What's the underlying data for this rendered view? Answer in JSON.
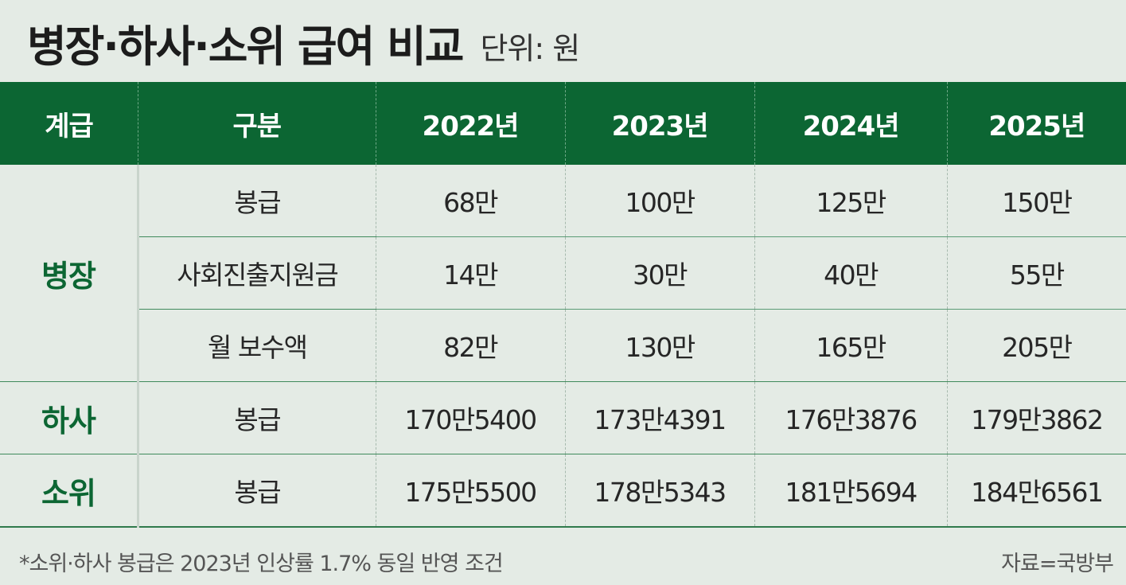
{
  "header": {
    "title": "병장·하사·소위 급여 비교",
    "unit": "단위: 원"
  },
  "table": {
    "headers": [
      "계급",
      "구분",
      "2022년",
      "2023년",
      "2024년",
      "2025년"
    ],
    "groups": [
      {
        "grade": "병장",
        "rows": [
          {
            "label": "봉급",
            "values": [
              "68만",
              "100만",
              "125만",
              "150만"
            ]
          },
          {
            "label": "사회진출지원금",
            "values": [
              "14만",
              "30만",
              "40만",
              "55만"
            ]
          },
          {
            "label": "월 보수액",
            "values": [
              "82만",
              "130만",
              "165만",
              "205만"
            ]
          }
        ]
      },
      {
        "grade": "하사",
        "rows": [
          {
            "label": "봉급",
            "values": [
              "170만5400",
              "173만4391",
              "176만3876",
              "179만3862"
            ]
          }
        ]
      },
      {
        "grade": "소위",
        "rows": [
          {
            "label": "봉급",
            "values": [
              "175만5500",
              "178만5343",
              "181만5694",
              "184만6561"
            ]
          }
        ]
      }
    ]
  },
  "chart_data": {
    "type": "table",
    "title": "병장·하사·소위 급여 비교",
    "unit": "단위: 원",
    "columns": [
      "계급",
      "구분",
      "2022년",
      "2023년",
      "2024년",
      "2025년"
    ],
    "rows": [
      [
        "병장",
        "봉급",
        "68만",
        "100만",
        "125만",
        "150만"
      ],
      [
        "병장",
        "사회진출지원금",
        "14만",
        "30만",
        "40만",
        "55만"
      ],
      [
        "병장",
        "월 보수액",
        "82만",
        "130만",
        "165만",
        "205만"
      ],
      [
        "하사",
        "봉급",
        "170만5400",
        "173만4391",
        "176만3876",
        "179만3862"
      ],
      [
        "소위",
        "봉급",
        "175만5500",
        "178만5343",
        "181만5694",
        "184만6561"
      ]
    ]
  },
  "footer": {
    "note": "*소위·하사 봉급은 2023년 인상률 1.7% 동일 반영 조건",
    "source": "자료=국방부"
  },
  "colors": {
    "header_bg": "#0c6633",
    "grade_text": "#0c6633",
    "page_bg": "#e4ebe5"
  }
}
